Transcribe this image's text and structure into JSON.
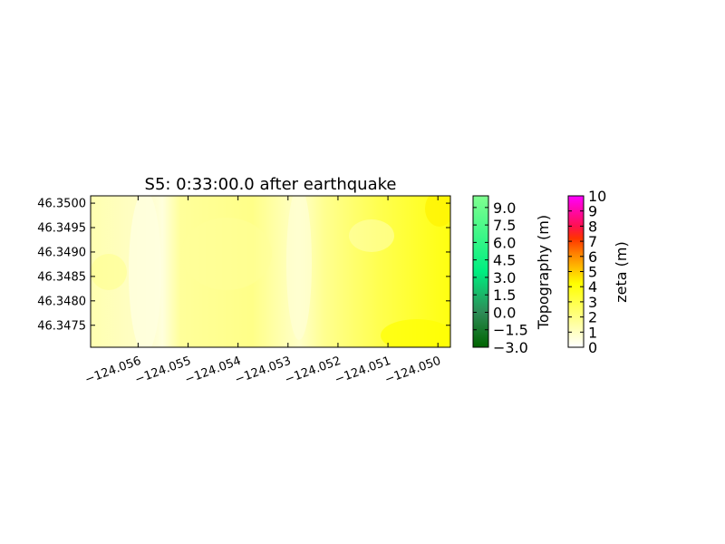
{
  "chart_data": {
    "type": "heatmap",
    "title": "S5: 0:33:00.0 after earthquake",
    "xlabel": "",
    "ylabel": "",
    "xlim": [
      -124.05695,
      -124.04975
    ],
    "ylim": [
      46.34705,
      46.35015
    ],
    "x_ticks": [
      -124.056,
      -124.055,
      -124.054,
      -124.053,
      -124.052,
      -124.051,
      -124.05
    ],
    "x_tick_labels": [
      "−124.056",
      "−124.055",
      "−124.054",
      "−124.053",
      "−124.052",
      "−124.051",
      "−124.050"
    ],
    "y_ticks": [
      46.3475,
      46.348,
      46.3485,
      46.349,
      46.3495,
      46.35
    ],
    "y_tick_labels": [
      "46.3475",
      "46.3480",
      "46.3485",
      "46.3490",
      "46.3495",
      "46.3500"
    ],
    "grid": false,
    "field_colormap": "white-yellow-orange-red-magenta",
    "colorbars": [
      {
        "label": "Topography (m)",
        "range": [
          -3.0,
          10.0
        ],
        "ticks": [
          -3.0,
          -1.5,
          0.0,
          1.5,
          3.0,
          4.5,
          6.0,
          7.5,
          9.0
        ],
        "tick_labels": [
          "−3.0",
          "−1.5",
          "0.0",
          "1.5",
          "3.0",
          "4.5",
          "6.0",
          "7.5",
          "9.0"
        ],
        "colors": [
          "#006400",
          "#00ff80",
          "#80ff80"
        ]
      },
      {
        "label": "zeta (m)",
        "range": [
          0,
          10
        ],
        "ticks": [
          0,
          1,
          2,
          3,
          4,
          5,
          6,
          7,
          8,
          9,
          10
        ],
        "tick_labels": [
          "0",
          "1",
          "2",
          "3",
          "4",
          "5",
          "6",
          "7",
          "8",
          "9",
          "10"
        ],
        "colors": [
          "#ffffff",
          "#ffff00",
          "#ff8000",
          "#ff0000",
          "#ff00ff"
        ]
      }
    ]
  }
}
